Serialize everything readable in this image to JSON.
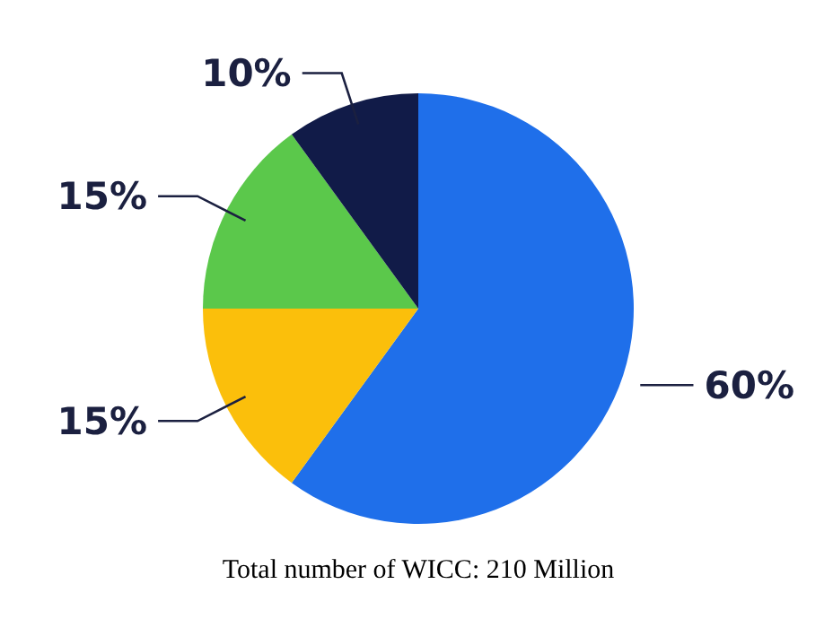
{
  "chart_data": {
    "type": "pie",
    "categories": [
      null,
      null,
      null,
      null
    ],
    "values": [
      60,
      15,
      15,
      10
    ],
    "colors": [
      "#1f6fea",
      "#fbbf0b",
      "#5bc84b",
      "#111b48"
    ],
    "value_labels": [
      "60%",
      "15%",
      "15%",
      "10%"
    ],
    "annotations": [
      "Total number of WICC: 210 Million"
    ]
  }
}
